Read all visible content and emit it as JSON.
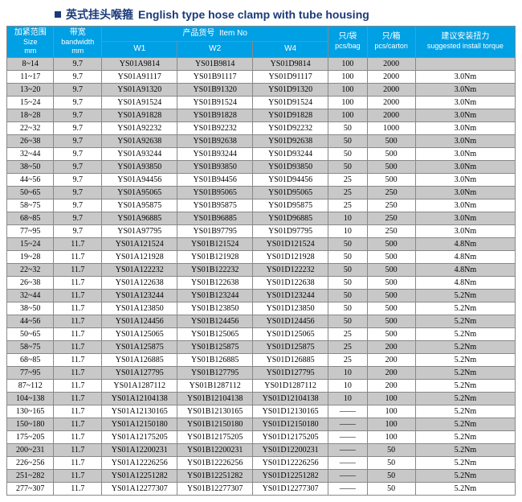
{
  "title_cn": "英式挂头喉箍",
  "title_en": "English type hose clamp with tube housing",
  "headers": {
    "size": {
      "cn": "加紧范围",
      "en": "Size",
      "unit": "mm"
    },
    "bandwidth": {
      "cn": "带宽",
      "en": "bandwidth",
      "unit": "mm"
    },
    "itemno": {
      "cn": "产品货号",
      "en": "Item No"
    },
    "w1": "W1",
    "w2": "W2",
    "w4": "W4",
    "pcsbag": {
      "cn": "只/袋",
      "en": "pcs/bag"
    },
    "pcscarton": {
      "cn": "只/箱",
      "en": "pcs/carton"
    },
    "torque": {
      "cn": "建议安装扭力",
      "en": "suggested install torque"
    }
  },
  "rows": [
    {
      "size": "8~14",
      "bw": "9.7",
      "w1": "YS01A9814",
      "w2": "YS01B9814",
      "w4": "YS01D9814",
      "bag": "100",
      "ctn": "2000",
      "tq": ""
    },
    {
      "size": "11~17",
      "bw": "9.7",
      "w1": "YS01A91117",
      "w2": "YS01B91117",
      "w4": "YS01D91117",
      "bag": "100",
      "ctn": "2000",
      "tq": "3.0Nm"
    },
    {
      "size": "13~20",
      "bw": "9.7",
      "w1": "YS01A91320",
      "w2": "YS01B91320",
      "w4": "YS01D91320",
      "bag": "100",
      "ctn": "2000",
      "tq": "3.0Nm"
    },
    {
      "size": "15~24",
      "bw": "9.7",
      "w1": "YS01A91524",
      "w2": "YS01B91524",
      "w4": "YS01D91524",
      "bag": "100",
      "ctn": "2000",
      "tq": "3.0Nm"
    },
    {
      "size": "18~28",
      "bw": "9.7",
      "w1": "YS01A91828",
      "w2": "YS01B91828",
      "w4": "YS01D91828",
      "bag": "100",
      "ctn": "2000",
      "tq": "3.0Nm"
    },
    {
      "size": "22~32",
      "bw": "9.7",
      "w1": "YS01A92232",
      "w2": "YS01B92232",
      "w4": "YS01D92232",
      "bag": "50",
      "ctn": "1000",
      "tq": "3.0Nm"
    },
    {
      "size": "26~38",
      "bw": "9.7",
      "w1": "YS01A92638",
      "w2": "YS01B92638",
      "w4": "YS01D92638",
      "bag": "50",
      "ctn": "500",
      "tq": "3.0Nm"
    },
    {
      "size": "32~44",
      "bw": "9.7",
      "w1": "YS01A93244",
      "w2": "YS01B93244",
      "w4": "YS01D93244",
      "bag": "50",
      "ctn": "500",
      "tq": "3.0Nm"
    },
    {
      "size": "38~50",
      "bw": "9.7",
      "w1": "YS01A93850",
      "w2": "YS01B93850",
      "w4": "YS01D93850",
      "bag": "50",
      "ctn": "500",
      "tq": "3.0Nm"
    },
    {
      "size": "44~56",
      "bw": "9.7",
      "w1": "YS01A94456",
      "w2": "YS01B94456",
      "w4": "YS01D94456",
      "bag": "25",
      "ctn": "500",
      "tq": "3.0Nm"
    },
    {
      "size": "50~65",
      "bw": "9.7",
      "w1": "YS01A95065",
      "w2": "YS01B95065",
      "w4": "YS01D95065",
      "bag": "25",
      "ctn": "250",
      "tq": "3.0Nm"
    },
    {
      "size": "58~75",
      "bw": "9.7",
      "w1": "YS01A95875",
      "w2": "YS01B95875",
      "w4": "YS01D95875",
      "bag": "25",
      "ctn": "250",
      "tq": "3.0Nm"
    },
    {
      "size": "68~85",
      "bw": "9.7",
      "w1": "YS01A96885",
      "w2": "YS01B96885",
      "w4": "YS01D96885",
      "bag": "10",
      "ctn": "250",
      "tq": "3.0Nm"
    },
    {
      "size": "77~95",
      "bw": "9.7",
      "w1": "YS01A97795",
      "w2": "YS01B97795",
      "w4": "YS01D97795",
      "bag": "10",
      "ctn": "250",
      "tq": "3.0Nm"
    },
    {
      "size": "15~24",
      "bw": "11.7",
      "w1": "YS01A121524",
      "w2": "YS01B121524",
      "w4": "YS01D121524",
      "bag": "50",
      "ctn": "500",
      "tq": "4.8Nm"
    },
    {
      "size": "19~28",
      "bw": "11.7",
      "w1": "YS01A121928",
      "w2": "YS01B121928",
      "w4": "YS01D121928",
      "bag": "50",
      "ctn": "500",
      "tq": "4.8Nm"
    },
    {
      "size": "22~32",
      "bw": "11.7",
      "w1": "YS01A122232",
      "w2": "YS01B122232",
      "w4": "YS01D122232",
      "bag": "50",
      "ctn": "500",
      "tq": "4.8Nm"
    },
    {
      "size": "26~38",
      "bw": "11.7",
      "w1": "YS01A122638",
      "w2": "YS01B122638",
      "w4": "YS01D122638",
      "bag": "50",
      "ctn": "500",
      "tq": "4.8Nm"
    },
    {
      "size": "32~44",
      "bw": "11.7",
      "w1": "YS01A123244",
      "w2": "YS01B123244",
      "w4": "YS01D123244",
      "bag": "50",
      "ctn": "500",
      "tq": "5.2Nm"
    },
    {
      "size": "38~50",
      "bw": "11.7",
      "w1": "YS01A123850",
      "w2": "YS01B123850",
      "w4": "YS01D123850",
      "bag": "50",
      "ctn": "500",
      "tq": "5.2Nm"
    },
    {
      "size": "44~56",
      "bw": "11.7",
      "w1": "YS01A124456",
      "w2": "YS01B124456",
      "w4": "YS01D124456",
      "bag": "50",
      "ctn": "500",
      "tq": "5.2Nm"
    },
    {
      "size": "50~65",
      "bw": "11.7",
      "w1": "YS01A125065",
      "w2": "YS01B125065",
      "w4": "YS01D125065",
      "bag": "25",
      "ctn": "500",
      "tq": "5.2Nm"
    },
    {
      "size": "58~75",
      "bw": "11.7",
      "w1": "YS01A125875",
      "w2": "YS01B125875",
      "w4": "YS01D125875",
      "bag": "25",
      "ctn": "200",
      "tq": "5.2Nm"
    },
    {
      "size": "68~85",
      "bw": "11.7",
      "w1": "YS01A126885",
      "w2": "YS01B126885",
      "w4": "YS01D126885",
      "bag": "25",
      "ctn": "200",
      "tq": "5.2Nm"
    },
    {
      "size": "77~95",
      "bw": "11.7",
      "w1": "YS01A127795",
      "w2": "YS01B127795",
      "w4": "YS01D127795",
      "bag": "10",
      "ctn": "200",
      "tq": "5.2Nm"
    },
    {
      "size": "87~112",
      "bw": "11.7",
      "w1": "YS01A1287112",
      "w2": "YS01B1287112",
      "w4": "YS01D1287112",
      "bag": "10",
      "ctn": "200",
      "tq": "5.2Nm"
    },
    {
      "size": "104~138",
      "bw": "11.7",
      "w1": "YS01A12104138",
      "w2": "YS01B12104138",
      "w4": "YS01D12104138",
      "bag": "10",
      "ctn": "100",
      "tq": "5.2Nm"
    },
    {
      "size": "130~165",
      "bw": "11.7",
      "w1": "YS01A12130165",
      "w2": "YS01B12130165",
      "w4": "YS01D12130165",
      "bag": "——",
      "ctn": "100",
      "tq": "5.2Nm"
    },
    {
      "size": "150~180",
      "bw": "11.7",
      "w1": "YS01A12150180",
      "w2": "YS01B12150180",
      "w4": "YS01D12150180",
      "bag": "——",
      "ctn": "100",
      "tq": "5.2Nm"
    },
    {
      "size": "175~205",
      "bw": "11.7",
      "w1": "YS01A12175205",
      "w2": "YS01B12175205",
      "w4": "YS01D12175205",
      "bag": "——",
      "ctn": "100",
      "tq": "5.2Nm"
    },
    {
      "size": "200~231",
      "bw": "11.7",
      "w1": "YS01A12200231",
      "w2": "YS01B12200231",
      "w4": "YS01D12200231",
      "bag": "——",
      "ctn": "50",
      "tq": "5.2Nm"
    },
    {
      "size": "226~256",
      "bw": "11.7",
      "w1": "YS01A12226256",
      "w2": "YS01B12226256",
      "w4": "YS01D12226256",
      "bag": "——",
      "ctn": "50",
      "tq": "5.2Nm"
    },
    {
      "size": "251~282",
      "bw": "11.7",
      "w1": "YS01A12251282",
      "w2": "YS01B12251282",
      "w4": "YS01D12251282",
      "bag": "——",
      "ctn": "50",
      "tq": "5.2Nm"
    },
    {
      "size": "277~307",
      "bw": "11.7",
      "w1": "YS01A12277307",
      "w2": "YS01B12277307",
      "w4": "YS01D12277307",
      "bag": "——",
      "ctn": "50",
      "tq": "5.2Nm"
    }
  ]
}
